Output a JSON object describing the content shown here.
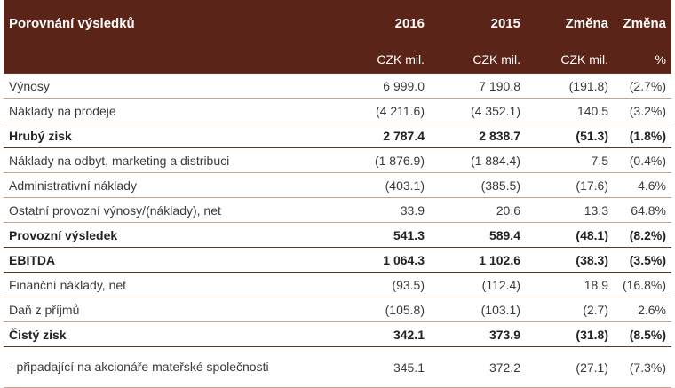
{
  "header": {
    "title": "Porovnání výsledků",
    "col_2016": "2016",
    "col_2015": "2015",
    "col_change": "Změna",
    "col_change_pct": "Změna",
    "unit_2016": "CZK mil.",
    "unit_2015": "CZK mil.",
    "unit_change": "CZK mil.",
    "unit_change_pct": "%"
  },
  "rows": [
    {
      "label": "Výnosy",
      "v2016": "6 999.0",
      "v2015": "7 190.8",
      "change": "(191.8)",
      "pct": "(2.7%)",
      "bold": false
    },
    {
      "label": "Náklady na prodeje",
      "v2016": "(4 211.6)",
      "v2015": "(4 352.1)",
      "change": "140.5",
      "pct": "(3.2%)",
      "bold": false
    },
    {
      "label": "Hrubý zisk",
      "v2016": "2 787.4",
      "v2015": "2 838.7",
      "change": "(51.3)",
      "pct": "(1.8%)",
      "bold": true
    },
    {
      "label": "Náklady na odbyt, marketing a distribuci",
      "v2016": "(1 876.9)",
      "v2015": "(1 884.4)",
      "change": "7.5",
      "pct": "(0.4%)",
      "bold": false
    },
    {
      "label": "Administrativní náklady",
      "v2016": "(403.1)",
      "v2015": "(385.5)",
      "change": "(17.6)",
      "pct": "4.6%",
      "bold": false
    },
    {
      "label": "Ostatní provozní výnosy/(náklady), net",
      "v2016": "33.9",
      "v2015": "20.6",
      "change": "13.3",
      "pct": "64.8%",
      "bold": false
    },
    {
      "label": "Provozní výsledek",
      "v2016": "541.3",
      "v2015": "589.4",
      "change": "(48.1)",
      "pct": "(8.2%)",
      "bold": true
    },
    {
      "label": "EBITDA",
      "v2016": "1 064.3",
      "v2015": "1 102.6",
      "change": "(38.3)",
      "pct": "(3.5%)",
      "bold": true
    },
    {
      "label": "Finanční náklady, net",
      "v2016": "(93.5)",
      "v2015": "(112.4)",
      "change": "18.9",
      "pct": "(16.8%)",
      "bold": false
    },
    {
      "label": "Daň z příjmů",
      "v2016": "(105.8)",
      "v2015": "(103.1)",
      "change": "(2.7)",
      "pct": "2.6%",
      "bold": false
    },
    {
      "label": "Čistý zisk",
      "v2016": "342.1",
      "v2015": "373.9",
      "change": "(31.8)",
      "pct": "(8.5%)",
      "bold": true
    },
    {
      "label": "- připadající na akcionáře mateřské společnosti",
      "v2016": "345.1",
      "v2015": "372.2",
      "change": "(27.1)",
      "pct": "(7.3%)",
      "bold": false
    }
  ]
}
